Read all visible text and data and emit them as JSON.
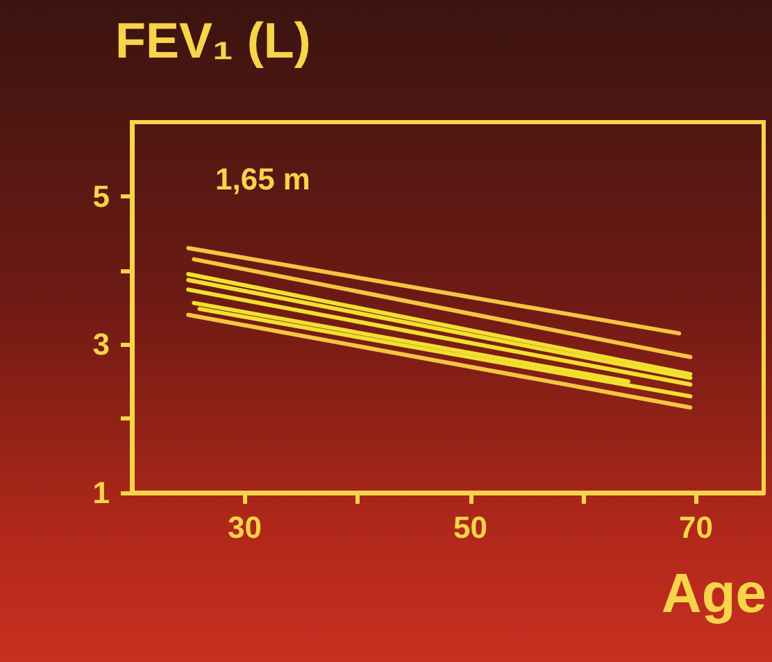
{
  "chart_data": {
    "type": "line",
    "title": "FEV₁ (L)",
    "xlabel": "Age",
    "annotations": [
      "1,65 m"
    ],
    "xlim": [
      20,
      76
    ],
    "xticks": [
      30,
      {
        "value": 40,
        "label": null
      },
      50,
      {
        "value": 60,
        "label": null
      },
      70
    ],
    "ylim": [
      1,
      6
    ],
    "yticks": [
      1,
      {
        "value": 2,
        "label": null
      },
      3,
      {
        "value": 4,
        "label": null
      },
      5
    ],
    "grid": false,
    "marker": "none",
    "line_style": "solid",
    "series": [
      {
        "color": "#f5c542",
        "x": [
          25,
          68.5
        ],
        "values": [
          4.3,
          3.15
        ]
      },
      {
        "color": "#f5c542",
        "x": [
          25.5,
          69.5
        ],
        "values": [
          4.15,
          2.83
        ]
      },
      {
        "color": "#f2e030",
        "x": [
          25,
          69.5
        ],
        "values": [
          3.95,
          2.6
        ]
      },
      {
        "color": "#f2e030",
        "x": [
          25,
          69.5
        ],
        "values": [
          3.87,
          2.55
        ]
      },
      {
        "color": "#f2e030",
        "x": [
          25,
          69.5
        ],
        "values": [
          3.74,
          2.46
        ]
      },
      {
        "color": "#f2e030",
        "x": [
          25.5,
          64
        ],
        "values": [
          3.56,
          2.5
        ]
      },
      {
        "color": "#f2e030",
        "x": [
          26,
          69.5
        ],
        "values": [
          3.48,
          2.3
        ]
      },
      {
        "color": "#f5c542",
        "x": [
          25,
          69.5
        ],
        "values": [
          3.4,
          2.15
        ]
      }
    ]
  }
}
